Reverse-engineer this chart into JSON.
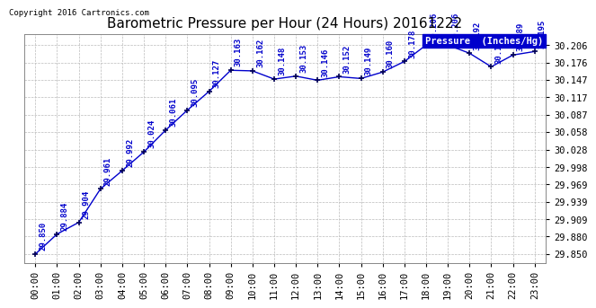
{
  "title": "Barometric Pressure per Hour (24 Hours) 20161222",
  "copyright": "Copyright 2016 Cartronics.com",
  "legend_label": "Pressure  (Inches/Hg)",
  "hours": [
    "00:00",
    "01:00",
    "02:00",
    "03:00",
    "04:00",
    "05:00",
    "06:00",
    "07:00",
    "08:00",
    "09:00",
    "10:00",
    "11:00",
    "12:00",
    "13:00",
    "14:00",
    "15:00",
    "16:00",
    "17:00",
    "18:00",
    "19:00",
    "20:00",
    "21:00",
    "22:00",
    "23:00"
  ],
  "values": [
    29.85,
    29.884,
    29.904,
    29.961,
    29.992,
    30.024,
    30.061,
    30.095,
    30.127,
    30.163,
    30.162,
    30.148,
    30.153,
    30.146,
    30.152,
    30.149,
    30.16,
    30.178,
    30.206,
    30.206,
    30.192,
    30.169,
    30.189,
    30.195
  ],
  "yticks": [
    29.85,
    29.88,
    29.909,
    29.939,
    29.969,
    29.998,
    30.028,
    30.058,
    30.087,
    30.117,
    30.147,
    30.176,
    30.206
  ],
  "ylim": [
    29.835,
    30.225
  ],
  "line_color": "#0000cc",
  "marker": "+",
  "marker_color": "#000055",
  "label_color": "#0000cc",
  "title_color": "#000000",
  "bg_color": "#ffffff",
  "plot_bg_color": "#ffffff",
  "grid_color": "#bbbbbb",
  "legend_bg": "#0000cc",
  "legend_text": "#ffffff",
  "title_fontsize": 11,
  "label_fontsize": 6.5,
  "tick_fontsize": 7.5,
  "copyright_fontsize": 6.5
}
